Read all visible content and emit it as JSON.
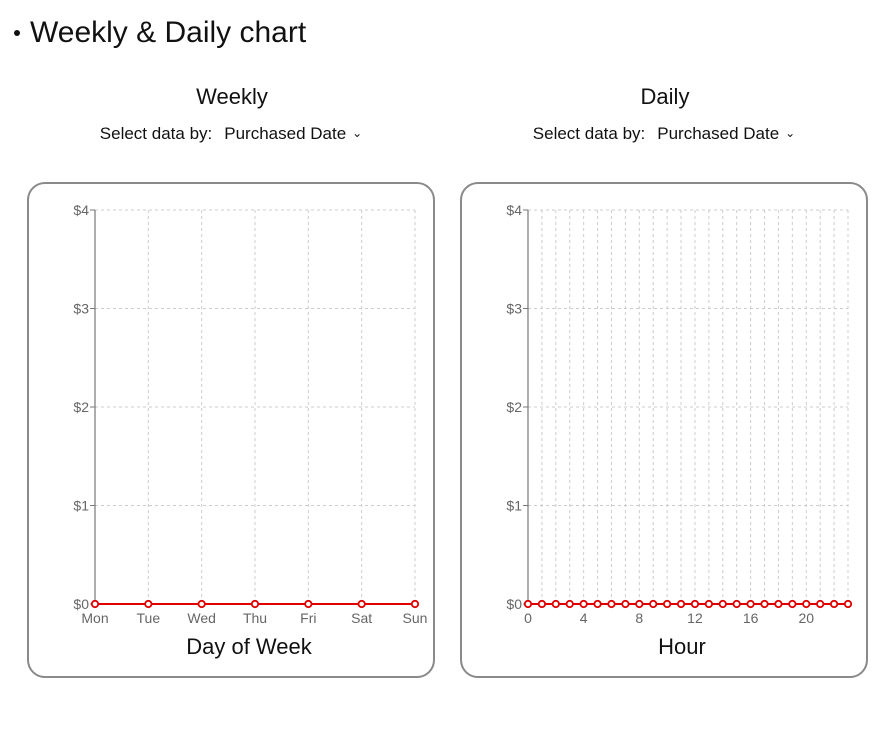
{
  "header": {
    "title": "Weekly & Daily chart"
  },
  "panels": [
    {
      "title": "Weekly",
      "selector": {
        "label": "Select data by:",
        "value": "Purchased Date"
      }
    },
    {
      "title": "Daily",
      "selector": {
        "label": "Select data by:",
        "value": "Purchased Date"
      }
    }
  ],
  "colors": {
    "line": "#e00000",
    "grid": "#cccccc",
    "axis": "#777777",
    "border": "#8a8a8a"
  },
  "chart_data": [
    {
      "type": "line",
      "xlabel": "Day of Week",
      "ylabel": "",
      "categories": [
        "Mon",
        "Tue",
        "Wed",
        "Thu",
        "Fri",
        "Sat",
        "Sun"
      ],
      "series": [
        {
          "values": [
            0,
            0,
            0,
            0,
            0,
            0,
            0
          ]
        }
      ],
      "ylim": [
        0,
        4
      ],
      "yticks": [
        "$0",
        "$1",
        "$2",
        "$3",
        "$4"
      ],
      "grid": true
    },
    {
      "type": "line",
      "xlabel": "Hour",
      "ylabel": "",
      "x": [
        0,
        1,
        2,
        3,
        4,
        5,
        6,
        7,
        8,
        9,
        10,
        11,
        12,
        13,
        14,
        15,
        16,
        17,
        18,
        19,
        20,
        21,
        22,
        23
      ],
      "series": [
        {
          "values": [
            0,
            0,
            0,
            0,
            0,
            0,
            0,
            0,
            0,
            0,
            0,
            0,
            0,
            0,
            0,
            0,
            0,
            0,
            0,
            0,
            0,
            0,
            0,
            0
          ]
        }
      ],
      "xticks": [
        "0",
        "4",
        "8",
        "12",
        "16",
        "20"
      ],
      "ylim": [
        0,
        4
      ],
      "yticks": [
        "$0",
        "$1",
        "$2",
        "$3",
        "$4"
      ],
      "grid": true
    }
  ]
}
